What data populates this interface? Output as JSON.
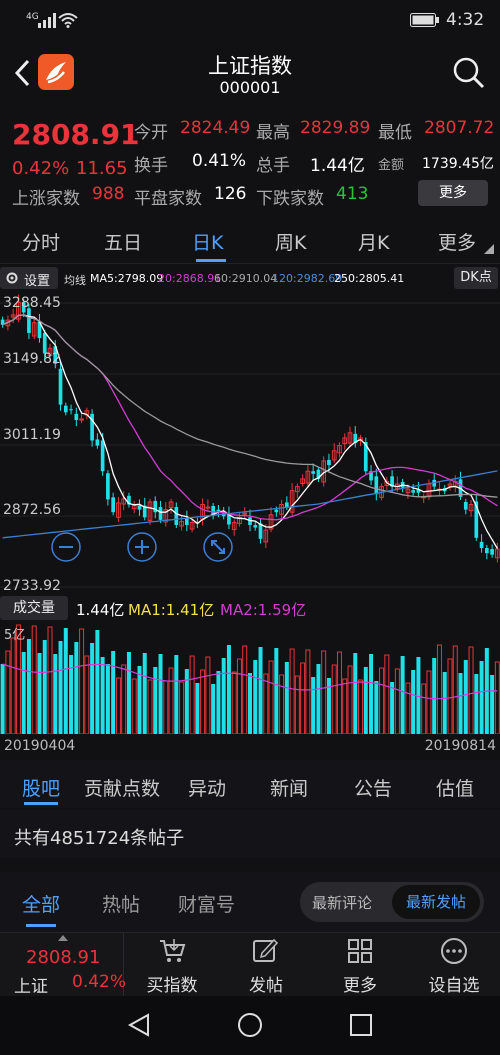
{
  "status": {
    "network": "4G",
    "time": "4:32"
  },
  "header": {
    "title": "上证指数",
    "code": "000001"
  },
  "quote": {
    "price": "2808.91",
    "change_pct": "0.42%",
    "change": "11.65",
    "open_label": "今开",
    "open": "2824.49",
    "high_label": "最高",
    "high": "2829.89",
    "low_label": "最低",
    "low": "2807.72",
    "turnover_label": "换手",
    "turnover": "0.41%",
    "volume_label": "总手",
    "volume": "1.44亿",
    "amount_label": "金额",
    "amount": "1739.45亿",
    "rise_label": "上涨家数",
    "rise": "988",
    "flat_label": "平盘家数",
    "flat": "126",
    "fall_label": "下跌家数",
    "fall": "413",
    "more_label": "更多"
  },
  "period_tabs": [
    "分时",
    "五日",
    "日K",
    "周K",
    "月K",
    "更多"
  ],
  "ma_bar": {
    "settings": "设置",
    "label": "均线",
    "ma5": "MA5:2798.09",
    "ma20": "20:2868.91",
    "ma60": "60:2910.04",
    "ma120": "120:2982.69",
    "ma250": "250:2805.41",
    "dk": "DK点"
  },
  "price_axis": [
    "3288.45",
    "3149.82",
    "3011.19",
    "2872.56",
    "2733.92"
  ],
  "volume_bar": {
    "label": "成交量",
    "vol": "1.44亿",
    "ma1": "MA1:1.41亿",
    "ma2": "MA2:1.59亿",
    "axis_top": "5亿"
  },
  "dates": {
    "start": "20190404",
    "end": "20190814"
  },
  "info_tabs": [
    "股吧",
    "贡献点数",
    "异动",
    "新闻",
    "公告",
    "估值"
  ],
  "posts_text": "共有4851724条帖子",
  "feed_tabs": [
    "全部",
    "热帖",
    "财富号"
  ],
  "sort_toggle": {
    "latest_comment": "最新评论",
    "latest_post": "最新发帖"
  },
  "bottom": {
    "price": "2808.91",
    "name": "上证",
    "pct": "0.42%",
    "buy": "买指数",
    "post": "发帖",
    "more": "更多",
    "watch": "设自选"
  },
  "colors": {
    "up": "#e8343a",
    "down": "#27c43a",
    "accent": "#4ea1ff",
    "candle_down": "#1ee0e6"
  },
  "chart_data": {
    "type": "candlestick",
    "y_axis_labels": [
      3288.45,
      3149.82,
      3011.19,
      2872.56,
      2733.92
    ],
    "x_range": [
      "20190404",
      "20190814"
    ],
    "closes_approx": [
      3246,
      3255,
      3265,
      3290,
      3270,
      3230,
      3250,
      3220,
      3190,
      3200,
      3170,
      3090,
      3075,
      3080,
      3060,
      3062,
      3078,
      3020,
      3010,
      2960,
      2905,
      2880,
      2898,
      2906,
      2895,
      2893,
      2885,
      2870,
      2900,
      2880,
      2865,
      2885,
      2900,
      2855,
      2862,
      2855,
      2860,
      2858,
      2895,
      2890,
      2875,
      2882,
      2872,
      2856,
      2860,
      2870,
      2878,
      2855,
      2850,
      2828,
      2845,
      2875,
      2880,
      2895,
      2890,
      2922,
      2930,
      2945,
      2960,
      2955,
      2945,
      2980,
      2972,
      3000,
      3010,
      3025,
      3035,
      3015,
      3025,
      2960,
      2942,
      2915,
      2930,
      2940,
      2930,
      2935,
      2928,
      2925,
      2918,
      2918,
      2910,
      2935,
      2930,
      2925,
      2921,
      2935,
      2940,
      2910,
      2885,
      2895,
      2830,
      2810,
      2800,
      2797,
      2808
    ]
  }
}
